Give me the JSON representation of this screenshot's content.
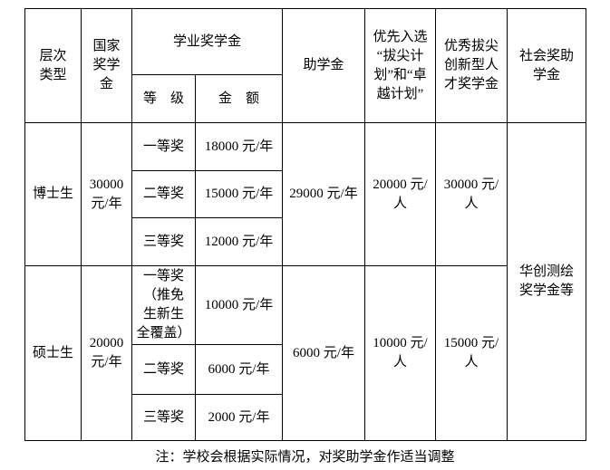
{
  "table": {
    "header": {
      "level_type": "层次\n类型",
      "national": "国家\n奖学\n金",
      "academic": "学业奖学金",
      "grade": "等　级",
      "amount": "金　额",
      "stipend": "助学金",
      "priority": "优先入选\n“拔尖计\n划”和“卓\n越计划”",
      "innovative": "优秀拔尖\n创新型人\n才奖学金",
      "social": "社会奖助\n学金"
    },
    "doctor": {
      "label": "博士生",
      "national": "30000\n元/年",
      "rows": [
        {
          "grade": "一等奖",
          "amount": "18000 元/年"
        },
        {
          "grade": "二等奖",
          "amount": "15000 元/年"
        },
        {
          "grade": "三等奖",
          "amount": "12000 元/年"
        }
      ],
      "stipend": "29000 元/年",
      "priority": "20000 元/\n人",
      "innovative": "30000 元/\n人"
    },
    "master": {
      "label": "硕士生",
      "national": "20000\n元/年",
      "rows": [
        {
          "grade": "一等奖\n（推免\n生新生\n全覆盖）",
          "amount": "10000 元/年"
        },
        {
          "grade": "二等奖",
          "amount": "6000 元/年"
        },
        {
          "grade": "三等奖",
          "amount": "2000 元/年"
        }
      ],
      "stipend": "6000 元/年",
      "priority": "10000 元/\n人",
      "innovative": "15000 元/\n人"
    },
    "social_body": "华创测绘\n奖学金等"
  },
  "note": "注：学校会根据实际情况，对奖助学金作适当调整"
}
